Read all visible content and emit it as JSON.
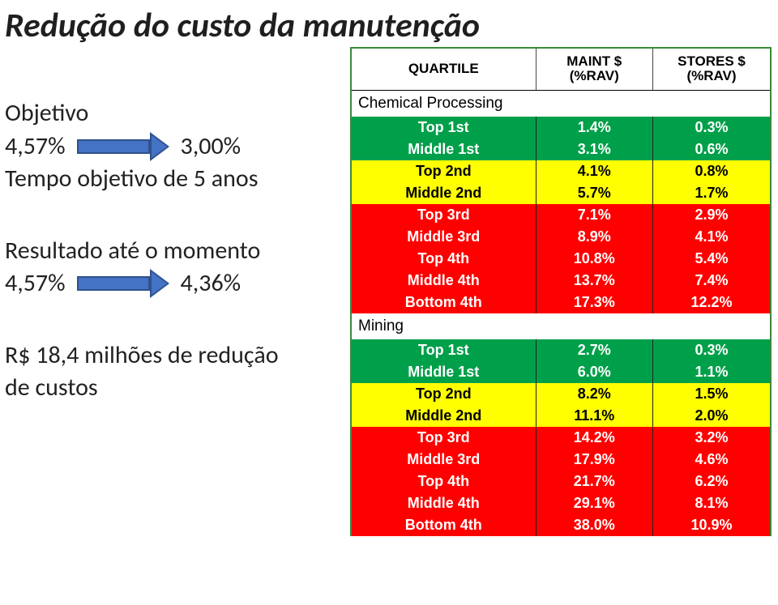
{
  "title": "Redução do custo da manutenção",
  "left": {
    "section1": {
      "heading": "Objetivo",
      "from": "4,57%",
      "to": "3,00%",
      "line2": "Tempo objetivo de 5 anos"
    },
    "section2": {
      "heading": "Resultado  até o momento",
      "from": "4,57%",
      "to": "4,36%"
    },
    "section3": {
      "line1": "R$  18,4 milhões de redução",
      "line2": "de custos"
    }
  },
  "table": {
    "headers": {
      "c1": "QUARTILE",
      "c2_a": "MAINT $",
      "c2_b": "(%RAV)",
      "c3_a": "STORES $",
      "c3_b": "(%RAV)"
    },
    "groups": [
      {
        "label": "Chemical Processing",
        "rows": [
          {
            "tone": "green",
            "q": "Top 1st",
            "m": "1.4%",
            "s": "0.3%"
          },
          {
            "tone": "green",
            "q": "Middle 1st",
            "m": "3.1%",
            "s": "0.6%"
          },
          {
            "tone": "yellow",
            "q": "Top 2nd",
            "m": "4.1%",
            "s": "0.8%"
          },
          {
            "tone": "yellow",
            "q": "Middle 2nd",
            "m": "5.7%",
            "s": "1.7%"
          },
          {
            "tone": "red",
            "q": "Top 3rd",
            "m": "7.1%",
            "s": "2.9%"
          },
          {
            "tone": "red",
            "q": "Middle 3rd",
            "m": "8.9%",
            "s": "4.1%"
          },
          {
            "tone": "red",
            "q": "Top 4th",
            "m": "10.8%",
            "s": "5.4%"
          },
          {
            "tone": "red",
            "q": "Middle 4th",
            "m": "13.7%",
            "s": "7.4%"
          },
          {
            "tone": "red",
            "q": "Bottom 4th",
            "m": "17.3%",
            "s": "12.2%"
          }
        ]
      },
      {
        "label": "Mining",
        "rows": [
          {
            "tone": "green",
            "q": "Top 1st",
            "m": "2.7%",
            "s": "0.3%"
          },
          {
            "tone": "green",
            "q": "Middle 1st",
            "m": "6.0%",
            "s": "1.1%"
          },
          {
            "tone": "yellow",
            "q": "Top 2nd",
            "m": "8.2%",
            "s": "1.5%"
          },
          {
            "tone": "yellow",
            "q": "Middle 2nd",
            "m": "11.1%",
            "s": "2.0%"
          },
          {
            "tone": "red",
            "q": "Top 3rd",
            "m": "14.2%",
            "s": "3.2%"
          },
          {
            "tone": "red",
            "q": "Middle 3rd",
            "m": "17.9%",
            "s": "4.6%"
          },
          {
            "tone": "red",
            "q": "Top 4th",
            "m": "21.7%",
            "s": "6.2%"
          },
          {
            "tone": "red",
            "q": "Middle 4th",
            "m": "29.1%",
            "s": "8.1%"
          },
          {
            "tone": "red",
            "q": "Bottom 4th",
            "m": "38.0%",
            "s": "10.9%"
          }
        ]
      }
    ]
  }
}
